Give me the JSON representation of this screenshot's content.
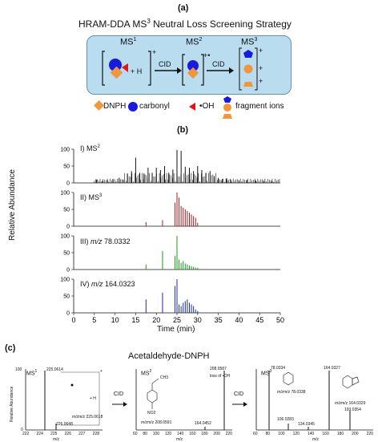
{
  "panel_a": {
    "label": "(a)",
    "title": "HRAM-DDA MS",
    "title_sup": "3",
    "title_rest": " Neutral Loss Screening Strategy",
    "ms1": "MS",
    "ms1_sup": "1",
    "ms2": "MS",
    "ms2_sup": "2",
    "ms3": "MS",
    "ms3_sup": "3",
    "plus_h": "+ H",
    "charge_plus": "+",
    "charge_radical": "+•",
    "cid1": "CID",
    "cid2": "CID",
    "frag_plus": [
      "+",
      "+",
      "+"
    ],
    "legend": [
      {
        "icon": "diamond",
        "label": "DNPH",
        "color": "#f0963c"
      },
      {
        "icon": "circle",
        "label": "carbonyl",
        "color": "#1a1adc"
      },
      {
        "icon": "triangle",
        "label": "•OH",
        "color": "#e0141e"
      },
      {
        "icon": "fragments",
        "label": "fragment ions"
      }
    ],
    "colors": {
      "box_fill": "#b9dcef",
      "box_border": "#6a8fa8"
    }
  },
  "panel_b": {
    "label": "(b)",
    "ylabel": "Relative Abundance",
    "xlabel": "Time (min)",
    "xticks": [
      "0",
      "5",
      "10",
      "15",
      "20",
      "25",
      "30",
      "35",
      "40",
      "45",
      "50"
    ],
    "yticks": [
      "0",
      "50",
      "100"
    ],
    "tracks": [
      {
        "label_pre": "I) MS",
        "label_sup": "2",
        "label_it": "",
        "label_post": "",
        "color": "#111111"
      },
      {
        "label_pre": "II) MS",
        "label_sup": "3",
        "label_it": "",
        "label_post": "",
        "color": "#a01e1e"
      },
      {
        "label_pre": "III) ",
        "label_sup": "",
        "label_it": "m/z",
        "label_post": " 78.0332",
        "color": "#1c9a1c"
      },
      {
        "label_pre": "IV) ",
        "label_sup": "",
        "label_it": "m/z",
        "label_post": " 164.0323",
        "color": "#1c2c9c"
      }
    ]
  },
  "chart_data": [
    {
      "type": "bar",
      "title": "I) MS2",
      "xlabel": "Time (min)",
      "ylabel": "Relative Abundance",
      "xlim": [
        0,
        50
      ],
      "ylim": [
        0,
        100
      ],
      "x": [
        5.5,
        7,
        8.2,
        9.5,
        11,
        12,
        13,
        14,
        15,
        16,
        17,
        18,
        19,
        20,
        21,
        22,
        23,
        24,
        25,
        26,
        27,
        28,
        29,
        30,
        31,
        32,
        33,
        34,
        35,
        36,
        37,
        38,
        40,
        42,
        44,
        46,
        48
      ],
      "values": [
        10,
        6,
        8,
        12,
        15,
        10,
        28,
        35,
        75,
        30,
        28,
        45,
        30,
        45,
        38,
        50,
        30,
        40,
        98,
        95,
        48,
        45,
        35,
        50,
        38,
        30,
        35,
        20,
        15,
        12,
        14,
        10,
        8,
        9,
        7,
        6,
        5
      ]
    },
    {
      "type": "bar",
      "title": "II) MS3",
      "xlim": [
        0,
        50
      ],
      "ylim": [
        0,
        100
      ],
      "x": [
        17.5,
        21.5,
        24.5,
        25,
        25.5,
        26,
        26.5,
        27,
        27.5,
        28,
        28.5,
        29,
        29.5,
        30
      ],
      "values": [
        12,
        18,
        70,
        100,
        85,
        60,
        55,
        50,
        45,
        40,
        35,
        30,
        25,
        10
      ]
    },
    {
      "type": "bar",
      "title": "III) m/z 78.0332",
      "xlim": [
        0,
        50
      ],
      "ylim": [
        0,
        100
      ],
      "x": [
        17.5,
        21.5,
        24.5,
        25,
        25.5,
        26,
        26.5,
        27,
        27.5,
        28,
        28.5,
        29,
        29.5,
        30
      ],
      "values": [
        15,
        55,
        40,
        100,
        30,
        20,
        25,
        18,
        15,
        12,
        10,
        8,
        6,
        5
      ]
    },
    {
      "type": "bar",
      "title": "IV) m/z 164.0323",
      "xlim": [
        0,
        50
      ],
      "ylim": [
        0,
        100
      ],
      "x": [
        17.5,
        21.5,
        24.5,
        25,
        25.5,
        26,
        26.5,
        27,
        27.5,
        28,
        28.5,
        29,
        29.5,
        30
      ],
      "values": [
        40,
        60,
        80,
        100,
        25,
        20,
        30,
        35,
        40,
        30,
        25,
        20,
        10,
        5
      ]
    },
    {
      "type": "bar",
      "title": "MS1",
      "xlabel": "m/z",
      "ylabel": "Relative Abundance",
      "xlim": [
        221,
        228
      ],
      "ylim": [
        0,
        100
      ],
      "x": [
        225.0614,
        226.0648
      ],
      "values": [
        100,
        10
      ],
      "xticks": [
        "222",
        "224",
        "225",
        "226",
        "227",
        "228"
      ]
    },
    {
      "type": "bar",
      "title": "MS2",
      "xlabel": "m/z",
      "ylabel": "Relative Abundance",
      "xlim": [
        60,
        220
      ],
      "ylim": [
        0,
        100
      ],
      "x": [
        164.0452,
        208.0587
      ],
      "values": [
        4,
        100
      ]
    },
    {
      "type": "bar",
      "title": "MS3",
      "xlabel": "m/z",
      "ylabel": "Relative Abundance",
      "xlim": [
        60,
        220
      ],
      "ylim": [
        0,
        100
      ],
      "x": [
        78.0334,
        106.0283,
        134.0345,
        164.0327,
        193.0354
      ],
      "values": [
        100,
        10,
        5,
        100,
        32
      ]
    }
  ],
  "panel_c": {
    "label": "(c)",
    "title": "Acetaldehyde-DNPH",
    "y_label": "Relative Abundance",
    "x_label": "m/z",
    "y100": "100",
    "y0": "0",
    "ms1": {
      "name": "MS",
      "sup": "1",
      "peak1": "225.0614",
      "peak2": "226.0648",
      "annot": "m/z 225.0618",
      "ticks": [
        "222",
        "224",
        "225",
        "226",
        "227",
        "228"
      ],
      "plus_h": "+ H",
      "plus": "+"
    },
    "ms2": {
      "name": "MS",
      "sup": "2",
      "peak1": "208.0587",
      "loss": "loss of •OH",
      "peak2": "164.0452",
      "annot": "m/z 208.0591",
      "ticks": [
        "60",
        "80",
        "100",
        "120",
        "140",
        "160",
        "180",
        "200",
        "220"
      ],
      "frag1": "CH3",
      "frag2": "NO2"
    },
    "ms3": {
      "name": "MS",
      "sup": "3",
      "p1": "78.0334",
      "p2": "106.0283",
      "p3": "134.0345",
      "p4": "164.0327",
      "p5": "193.0354",
      "annot1": "m/z 78.0338",
      "annot2": "m/z 164.0329",
      "ticks": [
        "60",
        "80",
        "100",
        "120",
        "140",
        "160",
        "180",
        "200",
        "220"
      ]
    },
    "cid1": "CID",
    "cid2": "CID"
  }
}
